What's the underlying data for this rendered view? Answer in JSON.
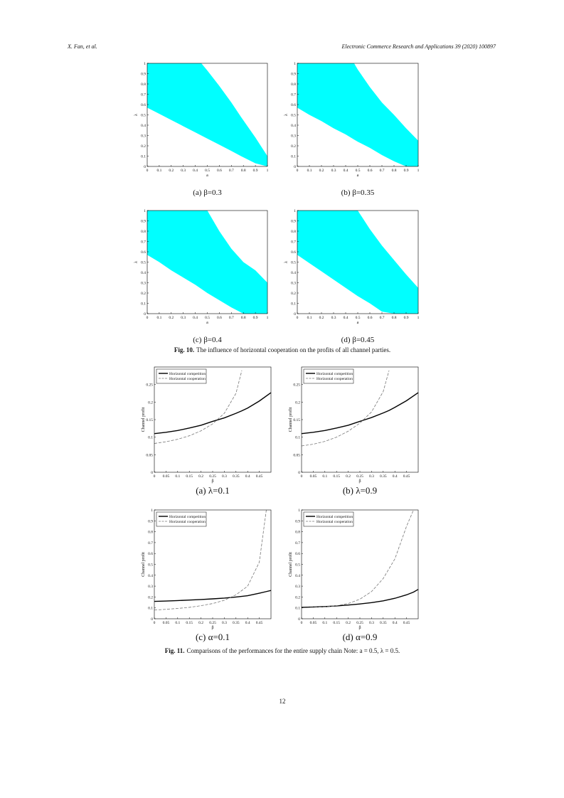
{
  "header": {
    "authors": "X. Fan, et al.",
    "journal": "Electronic Commerce Research and Applications 39 (2020) 100897"
  },
  "figures": [
    {
      "label": "Fig. 10.",
      "caption": "The influence of horizontal cooperation on the profits of all channel parties."
    },
    {
      "label": "Fig. 11.",
      "caption": "Comparisons of the performances for the entire supply chain Note: a = 0.5, λ = 0.5."
    }
  ],
  "page_number": "12",
  "chart_data": [
    {
      "type": "area",
      "subcaption": "(a) β=0.3",
      "xlabel": "a",
      "ylabel": "λ",
      "color": "#00ffff",
      "x": [
        0,
        0.1,
        0.2,
        0.3,
        0.4,
        0.45,
        0.5,
        0.6,
        0.7,
        0.78,
        0.9,
        1
      ],
      "y_high": [
        1,
        1,
        1,
        1,
        1,
        1,
        0.93,
        0.78,
        0.62,
        0.48,
        0.28,
        0.1
      ],
      "y_low": [
        0.57,
        0.51,
        0.45,
        0.39,
        0.33,
        0.3,
        0.27,
        0.21,
        0.15,
        0.1,
        0.03,
        0
      ],
      "xlim": [
        0,
        1
      ],
      "ylim": [
        0,
        1
      ],
      "xticks": [
        0,
        0.1,
        0.2,
        0.3,
        0.4,
        0.5,
        0.6,
        0.7,
        0.8,
        0.9,
        1
      ],
      "yticks": [
        0,
        0.1,
        0.2,
        0.3,
        0.4,
        0.5,
        0.6,
        0.7,
        0.8,
        0.9,
        1
      ]
    },
    {
      "type": "area",
      "subcaption": "(b) β=0.35",
      "xlabel": "a",
      "ylabel": "λ",
      "color": "#00ffff",
      "x": [
        0,
        0.1,
        0.2,
        0.3,
        0.4,
        0.47,
        0.5,
        0.6,
        0.7,
        0.8,
        0.9,
        1
      ],
      "y_high": [
        1,
        1,
        1,
        1,
        1,
        1,
        0.94,
        0.77,
        0.62,
        0.5,
        0.37,
        0.25
      ],
      "y_low": [
        0.57,
        0.5,
        0.44,
        0.37,
        0.31,
        0.26,
        0.24,
        0.18,
        0.11,
        0.05,
        0,
        0
      ],
      "xlim": [
        0,
        1
      ],
      "ylim": [
        0,
        1
      ],
      "xticks": [
        0,
        0.1,
        0.2,
        0.3,
        0.4,
        0.5,
        0.6,
        0.7,
        0.8,
        0.9,
        1
      ],
      "yticks": [
        0,
        0.1,
        0.2,
        0.3,
        0.4,
        0.5,
        0.6,
        0.7,
        0.8,
        0.9,
        1
      ]
    },
    {
      "type": "area",
      "subcaption": "(c) β=0.4",
      "xlabel": "a",
      "ylabel": "λ",
      "color": "#00ffff",
      "x": [
        0,
        0.1,
        0.2,
        0.3,
        0.4,
        0.5,
        0.6,
        0.7,
        0.8,
        0.9,
        1
      ],
      "y_high": [
        1,
        1,
        1,
        1,
        1,
        1,
        0.8,
        0.63,
        0.5,
        0.42,
        0.3
      ],
      "y_low": [
        0.57,
        0.5,
        0.42,
        0.35,
        0.28,
        0.2,
        0.13,
        0.06,
        0,
        0,
        0
      ],
      "xlim": [
        0,
        1
      ],
      "ylim": [
        0,
        1
      ],
      "xticks": [
        0,
        0.1,
        0.2,
        0.3,
        0.4,
        0.5,
        0.6,
        0.7,
        0.8,
        0.9,
        1
      ],
      "yticks": [
        0,
        0.1,
        0.2,
        0.3,
        0.4,
        0.5,
        0.6,
        0.7,
        0.8,
        0.9,
        1
      ]
    },
    {
      "type": "area",
      "subcaption": "(d) β=0.45",
      "xlabel": "a",
      "ylabel": "λ",
      "color": "#00ffff",
      "x": [
        0,
        0.1,
        0.2,
        0.3,
        0.4,
        0.5,
        0.6,
        0.7,
        0.8,
        0.9,
        1
      ],
      "y_high": [
        1,
        1,
        1,
        1,
        1,
        1,
        0.82,
        0.66,
        0.52,
        0.38,
        0.25
      ],
      "y_low": [
        0.57,
        0.49,
        0.41,
        0.33,
        0.25,
        0.17,
        0.1,
        0.02,
        0,
        0,
        0
      ],
      "xlim": [
        0,
        1
      ],
      "ylim": [
        0,
        1
      ],
      "xticks": [
        0,
        0.1,
        0.2,
        0.3,
        0.4,
        0.5,
        0.6,
        0.7,
        0.8,
        0.9,
        1
      ],
      "yticks": [
        0,
        0.1,
        0.2,
        0.3,
        0.4,
        0.5,
        0.6,
        0.7,
        0.8,
        0.9,
        1
      ]
    },
    {
      "type": "line",
      "subcaption": "(a) λ=0.1",
      "xlabel": "β",
      "ylabel": "Channel profit",
      "legend": "upper left",
      "x": [
        0,
        0.05,
        0.1,
        0.15,
        0.2,
        0.25,
        0.3,
        0.35,
        0.375,
        0.4,
        0.45,
        0.5
      ],
      "series": [
        {
          "name": "Horizontal competition",
          "color": "#000000",
          "style": "solid",
          "values": [
            0.11,
            0.114,
            0.119,
            0.126,
            0.134,
            0.145,
            0.155,
            0.168,
            0.175,
            0.183,
            0.203,
            0.227
          ]
        },
        {
          "name": "Horizontal cooperation",
          "color": "#777777",
          "style": "dashed",
          "values": [
            0.082,
            0.087,
            0.094,
            0.104,
            0.118,
            0.138,
            0.168,
            0.225,
            0.29,
            null,
            null,
            null
          ]
        }
      ],
      "xlim": [
        0,
        0.5
      ],
      "ylim": [
        0,
        0.3
      ],
      "xticks": [
        0,
        0.05,
        0.1,
        0.15,
        0.2,
        0.25,
        0.3,
        0.35,
        0.4,
        0.45
      ],
      "yticks": [
        0,
        0.05,
        0.1,
        0.15,
        0.2,
        0.25
      ]
    },
    {
      "type": "line",
      "subcaption": "(b) λ=0.9",
      "xlabel": "β",
      "ylabel": "Channel profit",
      "legend": "upper left",
      "x": [
        0,
        0.05,
        0.1,
        0.15,
        0.2,
        0.25,
        0.3,
        0.35,
        0.375,
        0.4,
        0.45,
        0.5
      ],
      "series": [
        {
          "name": "Horizontal competition",
          "color": "#000000",
          "style": "solid",
          "values": [
            0.11,
            0.114,
            0.119,
            0.126,
            0.134,
            0.145,
            0.156,
            0.169,
            0.176,
            0.185,
            0.204,
            0.227
          ]
        },
        {
          "name": "Horizontal cooperation",
          "color": "#777777",
          "style": "dashed",
          "values": [
            0.075,
            0.08,
            0.088,
            0.1,
            0.117,
            0.14,
            0.172,
            0.23,
            0.29,
            null,
            null,
            null
          ]
        }
      ],
      "xlim": [
        0,
        0.5
      ],
      "ylim": [
        0,
        0.3
      ],
      "xticks": [
        0,
        0.05,
        0.1,
        0.15,
        0.2,
        0.25,
        0.3,
        0.35,
        0.4,
        0.45
      ],
      "yticks": [
        0,
        0.05,
        0.1,
        0.15,
        0.2,
        0.25
      ]
    },
    {
      "type": "line",
      "subcaption": "(c) α=0.1",
      "xlabel": "β",
      "ylabel": "Channel profit",
      "legend": "upper left",
      "x": [
        0,
        0.05,
        0.1,
        0.15,
        0.2,
        0.25,
        0.3,
        0.35,
        0.4,
        0.45,
        0.48,
        0.5
      ],
      "series": [
        {
          "name": "Horizontal competition",
          "color": "#000000",
          "style": "solid",
          "values": [
            0.16,
            0.163,
            0.167,
            0.172,
            0.177,
            0.183,
            0.19,
            0.2,
            0.212,
            0.235,
            0.25,
            0.26
          ]
        },
        {
          "name": "Horizontal cooperation",
          "color": "#777777",
          "style": "dashed",
          "values": [
            0.08,
            0.087,
            0.095,
            0.105,
            0.12,
            0.14,
            0.17,
            0.22,
            0.3,
            0.52,
            1,
            null
          ]
        }
      ],
      "xlim": [
        0,
        0.5
      ],
      "ylim": [
        0,
        1
      ],
      "xticks": [
        0,
        0.05,
        0.1,
        0.15,
        0.2,
        0.25,
        0.3,
        0.35,
        0.4,
        0.45
      ],
      "yticks": [
        0,
        0.1,
        0.2,
        0.3,
        0.4,
        0.5,
        0.6,
        0.7,
        0.8,
        0.9,
        1
      ]
    },
    {
      "type": "line",
      "subcaption": "(d) α=0.9",
      "xlabel": "β",
      "ylabel": "Channel profit",
      "legend": "upper left",
      "x": [
        0,
        0.05,
        0.1,
        0.15,
        0.2,
        0.25,
        0.3,
        0.35,
        0.4,
        0.45,
        0.48,
        0.5
      ],
      "series": [
        {
          "name": "Horizontal competition",
          "color": "#000000",
          "style": "solid",
          "values": [
            0.105,
            0.108,
            0.112,
            0.118,
            0.126,
            0.136,
            0.148,
            0.165,
            0.188,
            0.22,
            0.245,
            0.27
          ]
        },
        {
          "name": "Horizontal cooperation",
          "color": "#777777",
          "style": "dashed",
          "values": [
            0.1,
            0.105,
            0.11,
            0.12,
            0.14,
            0.18,
            0.25,
            0.37,
            0.55,
            0.85,
            1,
            null
          ]
        }
      ],
      "xlim": [
        0,
        0.5
      ],
      "ylim": [
        0,
        1
      ],
      "xticks": [
        0,
        0.05,
        0.1,
        0.15,
        0.2,
        0.25,
        0.3,
        0.35,
        0.4,
        0.45
      ],
      "yticks": [
        0,
        0.1,
        0.2,
        0.3,
        0.4,
        0.5,
        0.6,
        0.7,
        0.8,
        0.9,
        1
      ]
    }
  ]
}
